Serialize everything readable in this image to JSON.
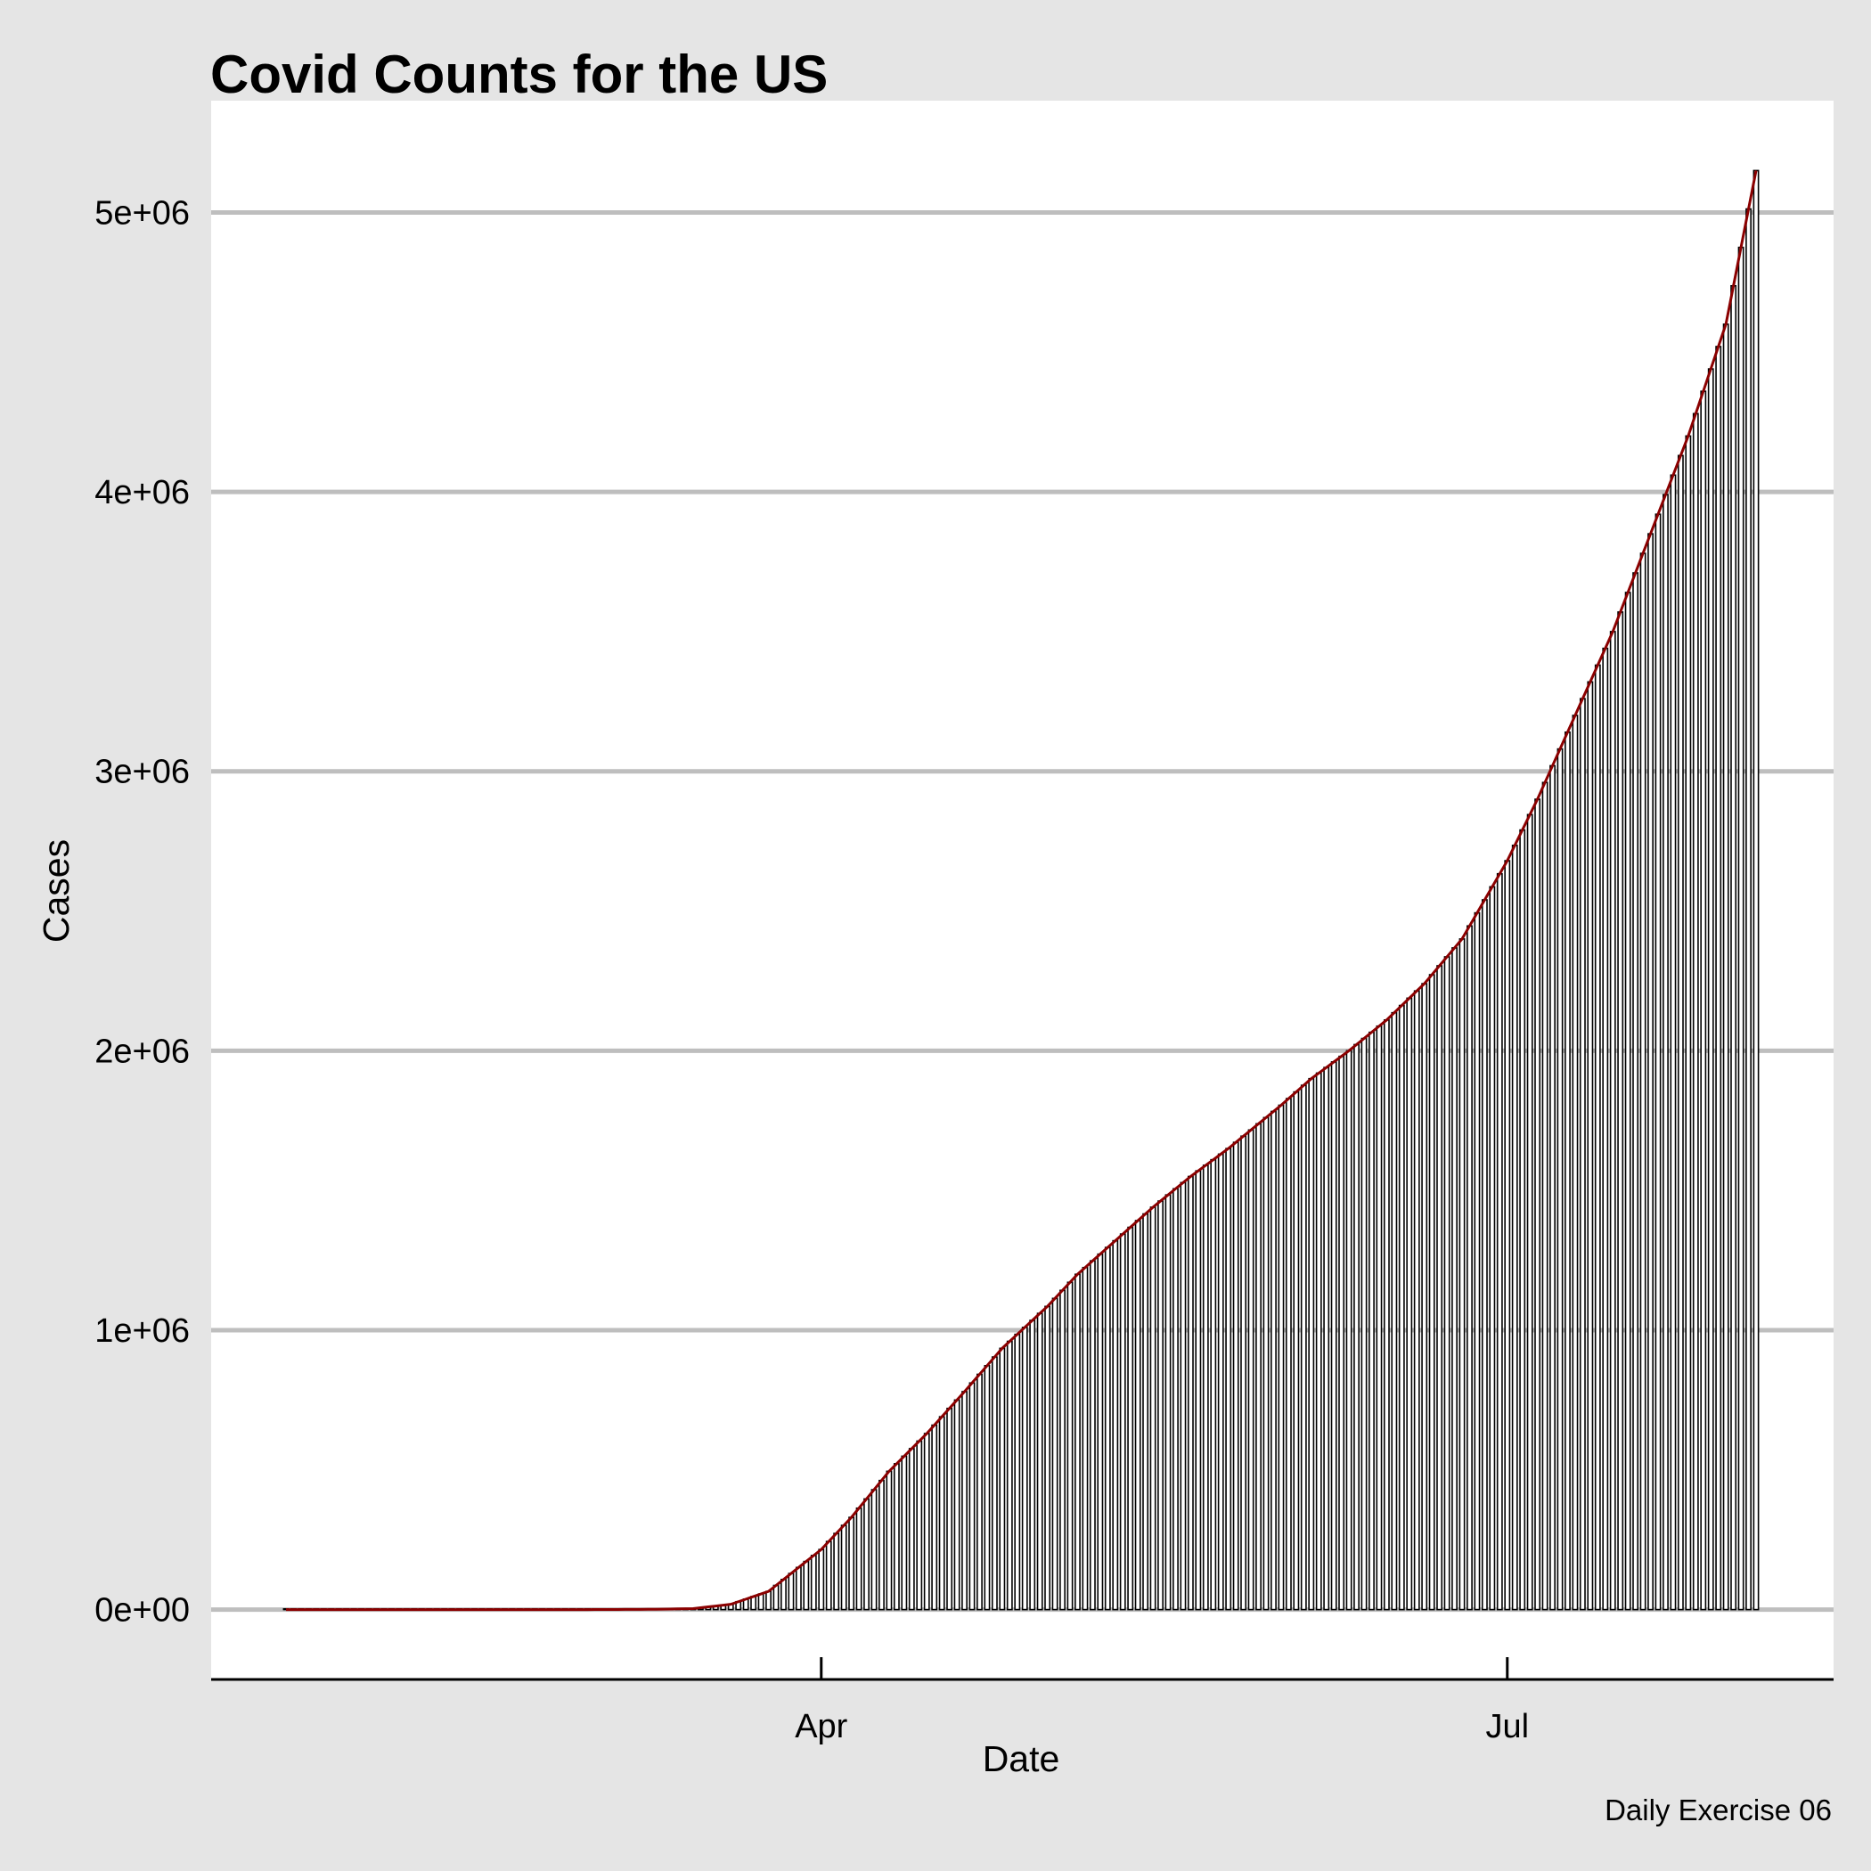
{
  "chart_data": {
    "type": "bar",
    "overlay": "line",
    "title": "Covid Counts for the US",
    "xlabel": "Date",
    "ylabel": "Cases",
    "caption": "Daily Exercise 06",
    "x_start": "2020-01-21",
    "x_end": "2020-08-03",
    "x_tick_labels": [
      {
        "label": "Apr",
        "date": "2020-04-01"
      },
      {
        "label": "Jul",
        "date": "2020-07-01"
      }
    ],
    "y_ticks": [
      0,
      1000000,
      2000000,
      3000000,
      4000000,
      5000000
    ],
    "y_tick_labels": [
      "0e+00",
      "1e+06",
      "2e+06",
      "3e+06",
      "4e+06",
      "5e+06"
    ],
    "ylim": [
      -250000,
      5400000
    ],
    "grid": "horizontal-major",
    "colors": {
      "background": "#e5e5e5",
      "panel": "#ffffff",
      "grid": "#bebebe",
      "bar_outline": "#000000",
      "line": "#8b0000"
    },
    "series": [
      {
        "name": "",
        "note": "cumulative cases; daily values interpolated between these key points",
        "points": [
          [
            "2020-01-21",
            1
          ],
          [
            "2020-03-01",
            75
          ],
          [
            "2020-03-10",
            1000
          ],
          [
            "2020-03-15",
            3500
          ],
          [
            "2020-03-20",
            19000
          ],
          [
            "2020-03-25",
            65000
          ],
          [
            "2020-04-01",
            215000
          ],
          [
            "2020-04-05",
            330000
          ],
          [
            "2020-04-10",
            495000
          ],
          [
            "2020-04-15",
            630000
          ],
          [
            "2020-04-20",
            780000
          ],
          [
            "2020-04-25",
            935000
          ],
          [
            "2020-05-01",
            1085000
          ],
          [
            "2020-05-05",
            1200000
          ],
          [
            "2020-05-10",
            1320000
          ],
          [
            "2020-05-15",
            1440000
          ],
          [
            "2020-05-20",
            1550000
          ],
          [
            "2020-05-25",
            1650000
          ],
          [
            "2020-06-01",
            1805000
          ],
          [
            "2020-06-05",
            1900000
          ],
          [
            "2020-06-10",
            2000000
          ],
          [
            "2020-06-15",
            2110000
          ],
          [
            "2020-06-20",
            2240000
          ],
          [
            "2020-06-25",
            2400000
          ],
          [
            "2020-07-01",
            2680000
          ],
          [
            "2020-07-05",
            2900000
          ],
          [
            "2020-07-10",
            3200000
          ],
          [
            "2020-07-15",
            3500000
          ],
          [
            "2020-07-20",
            3850000
          ],
          [
            "2020-07-25",
            4200000
          ],
          [
            "2020-07-30",
            4600000
          ],
          [
            "2020-08-03",
            5150000
          ]
        ]
      }
    ]
  }
}
